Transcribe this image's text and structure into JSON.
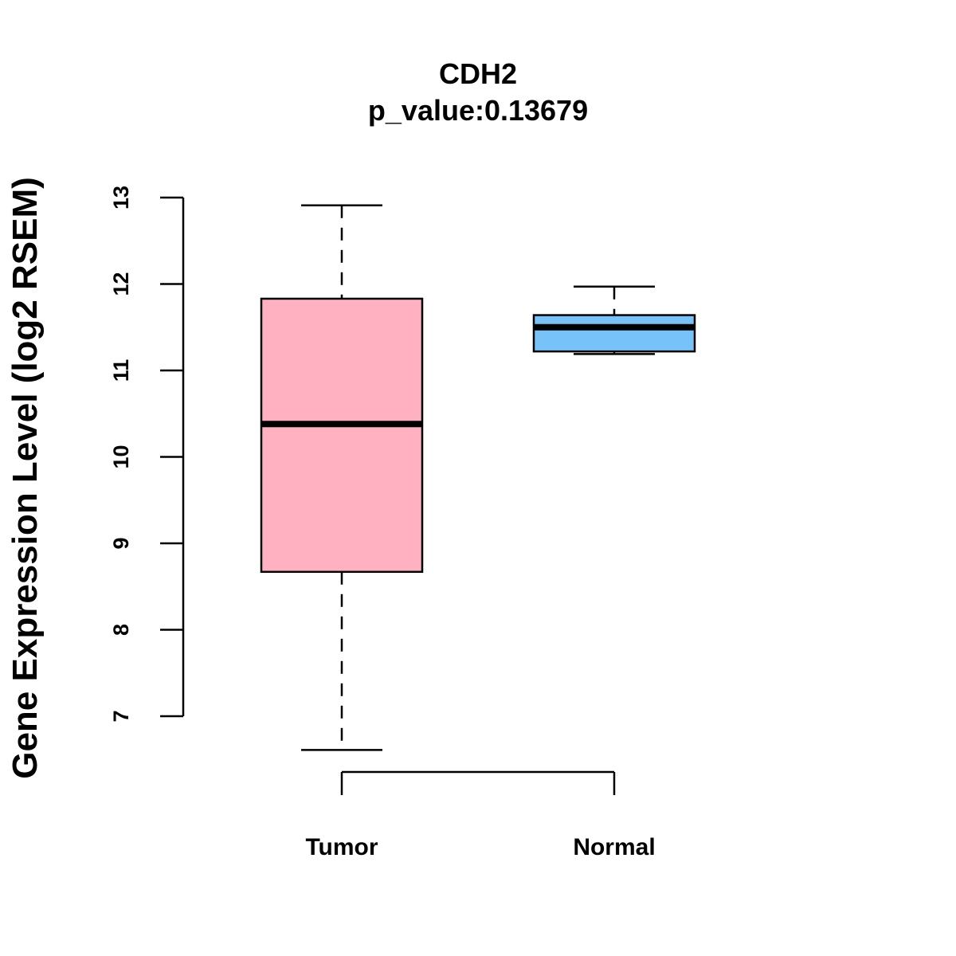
{
  "chart_data": {
    "type": "boxplot",
    "title": "CDH2",
    "subtitle": "p_value:0.13679",
    "xlabel": "",
    "ylabel": "Gene Expression Level (log2 RSEM)",
    "ylim": [
      7,
      13
    ],
    "yticks": [
      "7",
      "8",
      "9",
      "10",
      "11",
      "12",
      "13"
    ],
    "categories": [
      "Tumor",
      "Normal"
    ],
    "boxes": [
      {
        "name": "Tumor",
        "min": 6.61,
        "q1": 8.67,
        "median": 10.38,
        "q3": 11.83,
        "max": 12.91,
        "color": "#FFB0C1"
      },
      {
        "name": "Normal",
        "min": 11.19,
        "q1": 11.22,
        "median": 11.5,
        "q3": 11.64,
        "max": 11.97,
        "color": "#77C2F8"
      }
    ],
    "grid": false
  }
}
